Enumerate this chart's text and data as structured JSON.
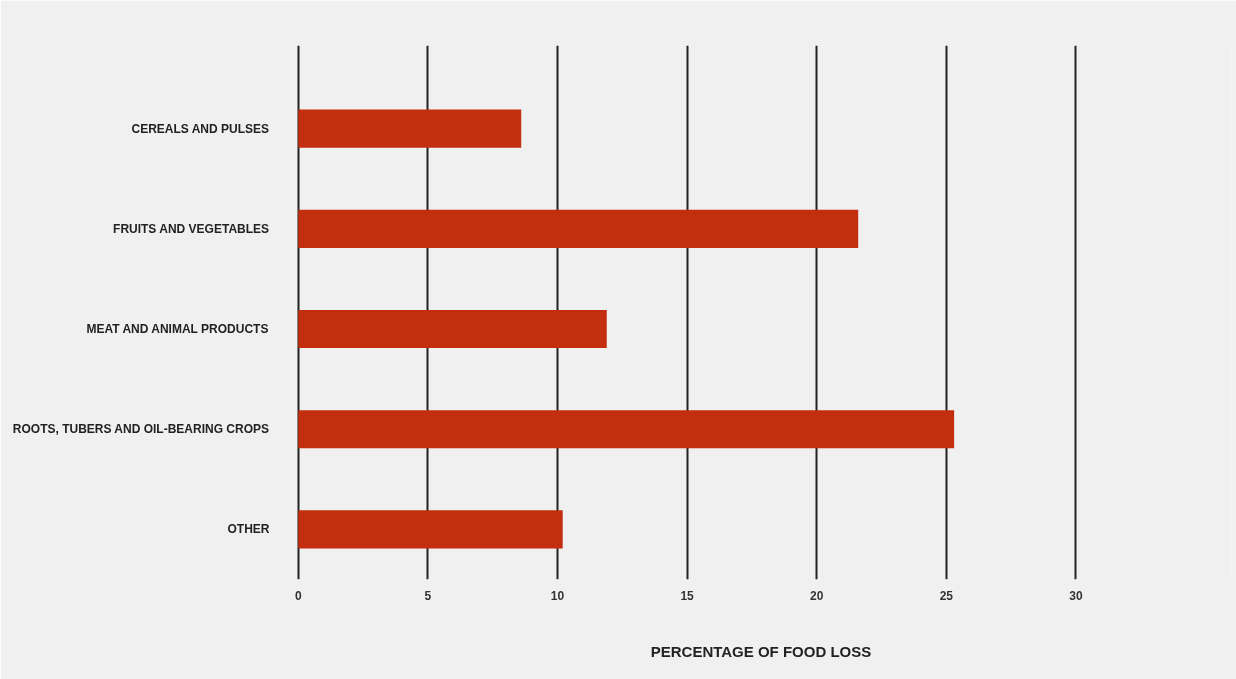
{
  "chart_data": {
    "type": "bar",
    "orientation": "horizontal",
    "categories": [
      "CEREALS AND PULSES",
      "FRUITS AND VEGETABLES",
      "MEAT AND ANIMAL PRODUCTS",
      "ROOTS, TUBERS AND OIL-BEARING CROPS",
      "OTHER"
    ],
    "values": [
      8.6,
      21.6,
      11.9,
      25.3,
      10.2
    ],
    "color": "#c22e0e",
    "xlim": [
      -0.3,
      36
    ],
    "xticks": [
      0,
      5,
      10,
      15,
      20,
      25,
      30
    ],
    "xlabel": "PERCENTAGE OF FOOD LOSS",
    "grid": "x"
  }
}
